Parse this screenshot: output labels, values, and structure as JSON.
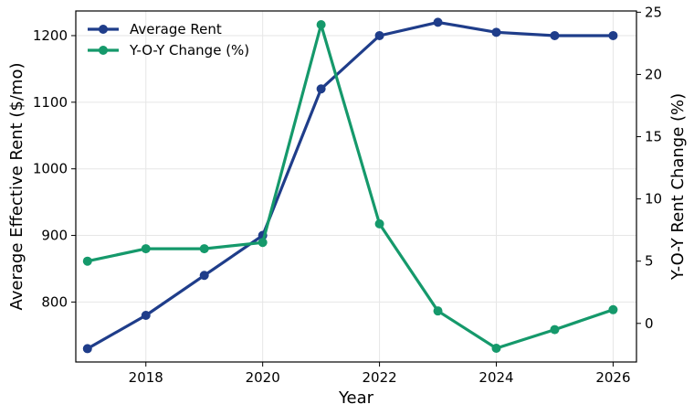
{
  "chart_data": {
    "type": "line",
    "title": "",
    "xlabel": "Year",
    "ylabel_left": "Average Effective Rent ($/mo)",
    "ylabel_right": "Y-O-Y Rent Change (%)",
    "x": [
      2017,
      2018,
      2019,
      2020,
      2021,
      2022,
      2023,
      2024,
      2025,
      2026
    ],
    "x_ticks": [
      "2018",
      "2020",
      "2022",
      "2024",
      "2026"
    ],
    "xlim": [
      2016.8,
      2026.4
    ],
    "ylim_left": [
      710,
      1237
    ],
    "ylim_right": [
      -3.1,
      25.1
    ],
    "yticks_left": [
      "800",
      "900",
      "1000",
      "1100",
      "1200"
    ],
    "yticks_right": [
      "0",
      "5",
      "10",
      "15",
      "20",
      "25"
    ],
    "grid": true,
    "legend_position": "top-left",
    "series": [
      {
        "name": "Average Rent",
        "axis": "left",
        "color": "#1f3d8a",
        "values": [
          730,
          780,
          840,
          900,
          1120,
          1200,
          1220,
          1205,
          1200,
          1200
        ]
      },
      {
        "name": "Y-O-Y Change (%)",
        "axis": "right",
        "color": "#15996b",
        "values": [
          5,
          6,
          6,
          6.5,
          24,
          8,
          1,
          -2,
          -0.5,
          1.1
        ]
      }
    ]
  }
}
